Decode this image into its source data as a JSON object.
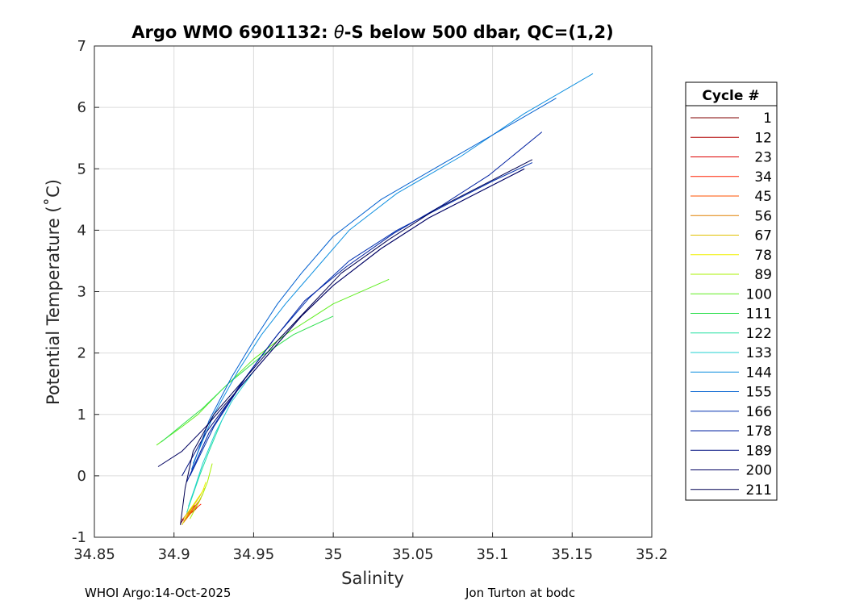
{
  "chart_data": {
    "type": "line",
    "title": "Argo WMO 6901132: θ-S below 500 dbar,  QC=(1,2)",
    "title_prefix": "Argo WMO 6901132: ",
    "title_theta": "θ",
    "title_suffix": "-S below 500 dbar,  QC=(1,2)",
    "xlabel": "Salinity",
    "ylabel": "Potential Temperature (˚C)",
    "xlim": [
      34.85,
      35.2
    ],
    "ylim": [
      -1,
      7
    ],
    "xticks": [
      "34.85",
      "34.9",
      "34.95",
      "35",
      "35.05",
      "35.1",
      "35.15",
      "35.2"
    ],
    "yticks": [
      "-1",
      "0",
      "1",
      "2",
      "3",
      "4",
      "5",
      "6",
      "7"
    ],
    "grid": true,
    "legend_title": "Cycle #",
    "legend_position": "outside-right",
    "series": [
      {
        "name": "1",
        "color": "#800000",
        "x": [
          34.904,
          34.906,
          34.908,
          34.91,
          34.912
        ],
        "y": [
          -0.78,
          -0.7,
          -0.62,
          -0.55,
          -0.5
        ]
      },
      {
        "name": "12",
        "color": "#b00000",
        "x": [
          34.905,
          34.907,
          34.909,
          34.911,
          34.913
        ],
        "y": [
          -0.72,
          -0.66,
          -0.6,
          -0.54,
          -0.48
        ]
      },
      {
        "name": "23",
        "color": "#dd0000",
        "x": [
          34.906,
          34.908,
          34.91,
          34.913,
          34.915
        ],
        "y": [
          -0.74,
          -0.68,
          -0.62,
          -0.56,
          -0.5
        ]
      },
      {
        "name": "34",
        "color": "#ff2000",
        "x": [
          34.907,
          34.909,
          34.911,
          34.914,
          34.917
        ],
        "y": [
          -0.7,
          -0.64,
          -0.58,
          -0.52,
          -0.46
        ]
      },
      {
        "name": "45",
        "color": "#ff5000",
        "x": [
          34.908,
          34.91,
          34.913,
          34.916,
          34.918
        ],
        "y": [
          -0.68,
          -0.6,
          -0.5,
          -0.4,
          -0.3
        ]
      },
      {
        "name": "56",
        "color": "#e08000",
        "x": [
          34.906,
          34.909,
          34.912,
          34.915,
          34.917
        ],
        "y": [
          -0.76,
          -0.66,
          -0.56,
          -0.46,
          -0.36
        ]
      },
      {
        "name": "67",
        "color": "#e0c000",
        "x": [
          34.905,
          34.908,
          34.912,
          34.916,
          34.919
        ],
        "y": [
          -0.8,
          -0.66,
          -0.5,
          -0.34,
          -0.2
        ]
      },
      {
        "name": "78",
        "color": "#f0f000",
        "x": [
          34.906,
          34.91,
          34.914,
          34.918,
          34.92
        ],
        "y": [
          -0.7,
          -0.55,
          -0.4,
          -0.25,
          -0.1
        ]
      },
      {
        "name": "89",
        "color": "#a8f000",
        "x": [
          34.91,
          34.914,
          34.918,
          34.921,
          34.924
        ],
        "y": [
          -0.7,
          -0.5,
          -0.3,
          -0.1,
          0.2
        ]
      },
      {
        "name": "100",
        "color": "#60ee20",
        "x": [
          34.889,
          34.905,
          34.915,
          34.93,
          34.95,
          34.97,
          35.0,
          35.035
        ],
        "y": [
          0.5,
          0.8,
          1.0,
          1.4,
          1.9,
          2.3,
          2.8,
          3.2
        ]
      },
      {
        "name": "111",
        "color": "#30e050",
        "x": [
          34.892,
          34.906,
          34.918,
          34.934,
          34.955,
          34.975,
          35.0
        ],
        "y": [
          0.55,
          0.85,
          1.1,
          1.5,
          1.95,
          2.3,
          2.6
        ]
      },
      {
        "name": "122",
        "color": "#20e0a0",
        "x": [
          34.908,
          34.912,
          34.916,
          34.922,
          34.93
        ],
        "y": [
          -0.6,
          -0.3,
          0.0,
          0.4,
          0.9
        ]
      },
      {
        "name": "133",
        "color": "#20d0d0",
        "x": [
          34.909,
          34.913,
          34.918,
          34.926,
          34.936,
          34.95
        ],
        "y": [
          -0.5,
          -0.2,
          0.2,
          0.7,
          1.2,
          1.7
        ]
      },
      {
        "name": "144",
        "color": "#1090e0",
        "x": [
          34.912,
          34.925,
          34.94,
          34.955,
          34.97,
          34.99,
          35.01,
          35.04,
          35.08,
          35.12,
          35.163
        ],
        "y": [
          0.2,
          1.0,
          1.7,
          2.3,
          2.8,
          3.4,
          4.0,
          4.6,
          5.2,
          5.9,
          6.55
        ]
      },
      {
        "name": "155",
        "color": "#0060d0",
        "x": [
          34.911,
          34.922,
          34.936,
          34.95,
          34.965,
          34.98,
          35.0,
          35.03,
          35.07,
          35.11,
          35.14
        ],
        "y": [
          0.1,
          0.9,
          1.6,
          2.2,
          2.8,
          3.3,
          3.9,
          4.5,
          5.1,
          5.7,
          6.15
        ]
      },
      {
        "name": "166",
        "color": "#0030b0",
        "x": [
          34.91,
          34.925,
          34.945,
          34.965,
          34.985,
          35.01,
          35.04,
          35.07,
          35.1,
          35.125
        ],
        "y": [
          0.0,
          0.8,
          1.6,
          2.3,
          2.9,
          3.5,
          4.0,
          4.4,
          4.8,
          5.1
        ]
      },
      {
        "name": "178",
        "color": "#0020a0",
        "x": [
          34.908,
          34.922,
          34.942,
          34.962,
          34.982,
          35.008,
          35.038,
          35.068,
          35.098,
          35.131
        ],
        "y": [
          -0.1,
          0.7,
          1.5,
          2.2,
          2.85,
          3.4,
          3.95,
          4.4,
          4.9,
          5.6
        ]
      },
      {
        "name": "189",
        "color": "#001080",
        "x": [
          34.905,
          34.92,
          34.94,
          34.96,
          34.98,
          35.0,
          35.03,
          35.06,
          35.09,
          35.12
        ],
        "y": [
          0.0,
          0.7,
          1.4,
          2.0,
          2.6,
          3.1,
          3.7,
          4.2,
          4.6,
          5.0
        ]
      },
      {
        "name": "200",
        "color": "#000060",
        "x": [
          34.89,
          34.905,
          34.92,
          34.94,
          34.96,
          34.98,
          35.0,
          35.03,
          35.06,
          35.09,
          35.12
        ],
        "y": [
          0.15,
          0.4,
          0.8,
          1.4,
          2.0,
          2.6,
          3.1,
          3.7,
          4.2,
          4.6,
          5.0
        ]
      },
      {
        "name": "211",
        "color": "#000050",
        "x": [
          34.904,
          34.907,
          34.912,
          34.925,
          34.945,
          34.965,
          34.985,
          35.005,
          35.035,
          35.065,
          35.095,
          35.125
        ],
        "y": [
          -0.8,
          -0.2,
          0.4,
          1.0,
          1.6,
          2.2,
          2.75,
          3.3,
          3.85,
          4.35,
          4.75,
          5.15
        ]
      }
    ]
  },
  "footer": {
    "left": "WHOI Argo:14-Oct-2025",
    "right": "Jon Turton at bodc"
  }
}
